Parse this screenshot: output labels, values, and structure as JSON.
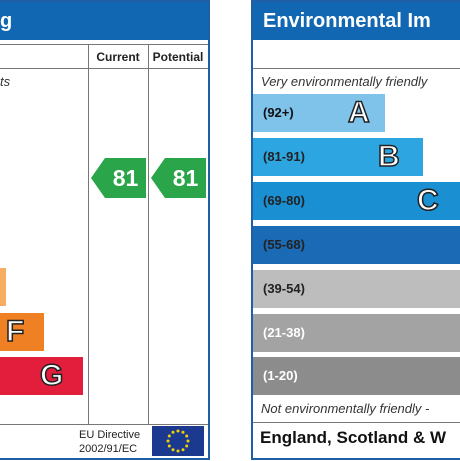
{
  "left_panel": {
    "header_title": "g",
    "col_current": "Current",
    "col_potential": "Potential",
    "note_top": "ts",
    "current_rating": "81",
    "potential_rating": "81",
    "rating_color": "#2aa54a",
    "bands": [
      {
        "letter": "",
        "color": "#f7ad62"
      },
      {
        "letter": "F",
        "color": "#ef8023"
      },
      {
        "letter": "G",
        "color": "#e31d3c"
      }
    ],
    "footer_directive_line1": "EU Directive",
    "footer_directive_line2": "2002/91/EC"
  },
  "right_panel": {
    "header_title": "Environmental Im",
    "note_top": "Very environmentally friendly",
    "note_bottom": "Not environmentally friendly -",
    "footer": "England, Scotland & W",
    "bands": [
      {
        "range": "(92+)",
        "letter": "A",
        "color": "#7fc3ea",
        "text_color": "#111111"
      },
      {
        "range": "(81-91)",
        "letter": "B",
        "color": "#2ca5e0",
        "text_color": "#222222"
      },
      {
        "range": "(69-80)",
        "letter": "C",
        "color": "#1a8fd1",
        "text_color": "#222222"
      },
      {
        "range": "(55-68)",
        "letter": "",
        "color": "#1a6ab6",
        "text_color": "#222222"
      },
      {
        "range": "(39-54)",
        "letter": "",
        "color": "#bdbdbd",
        "text_color": "#222222"
      },
      {
        "range": "(21-38)",
        "letter": "",
        "color": "#a3a3a3",
        "text_color": "#ffffff"
      },
      {
        "range": "(1-20)",
        "letter": "",
        "color": "#8c8c8c",
        "text_color": "#ffffff"
      }
    ]
  }
}
